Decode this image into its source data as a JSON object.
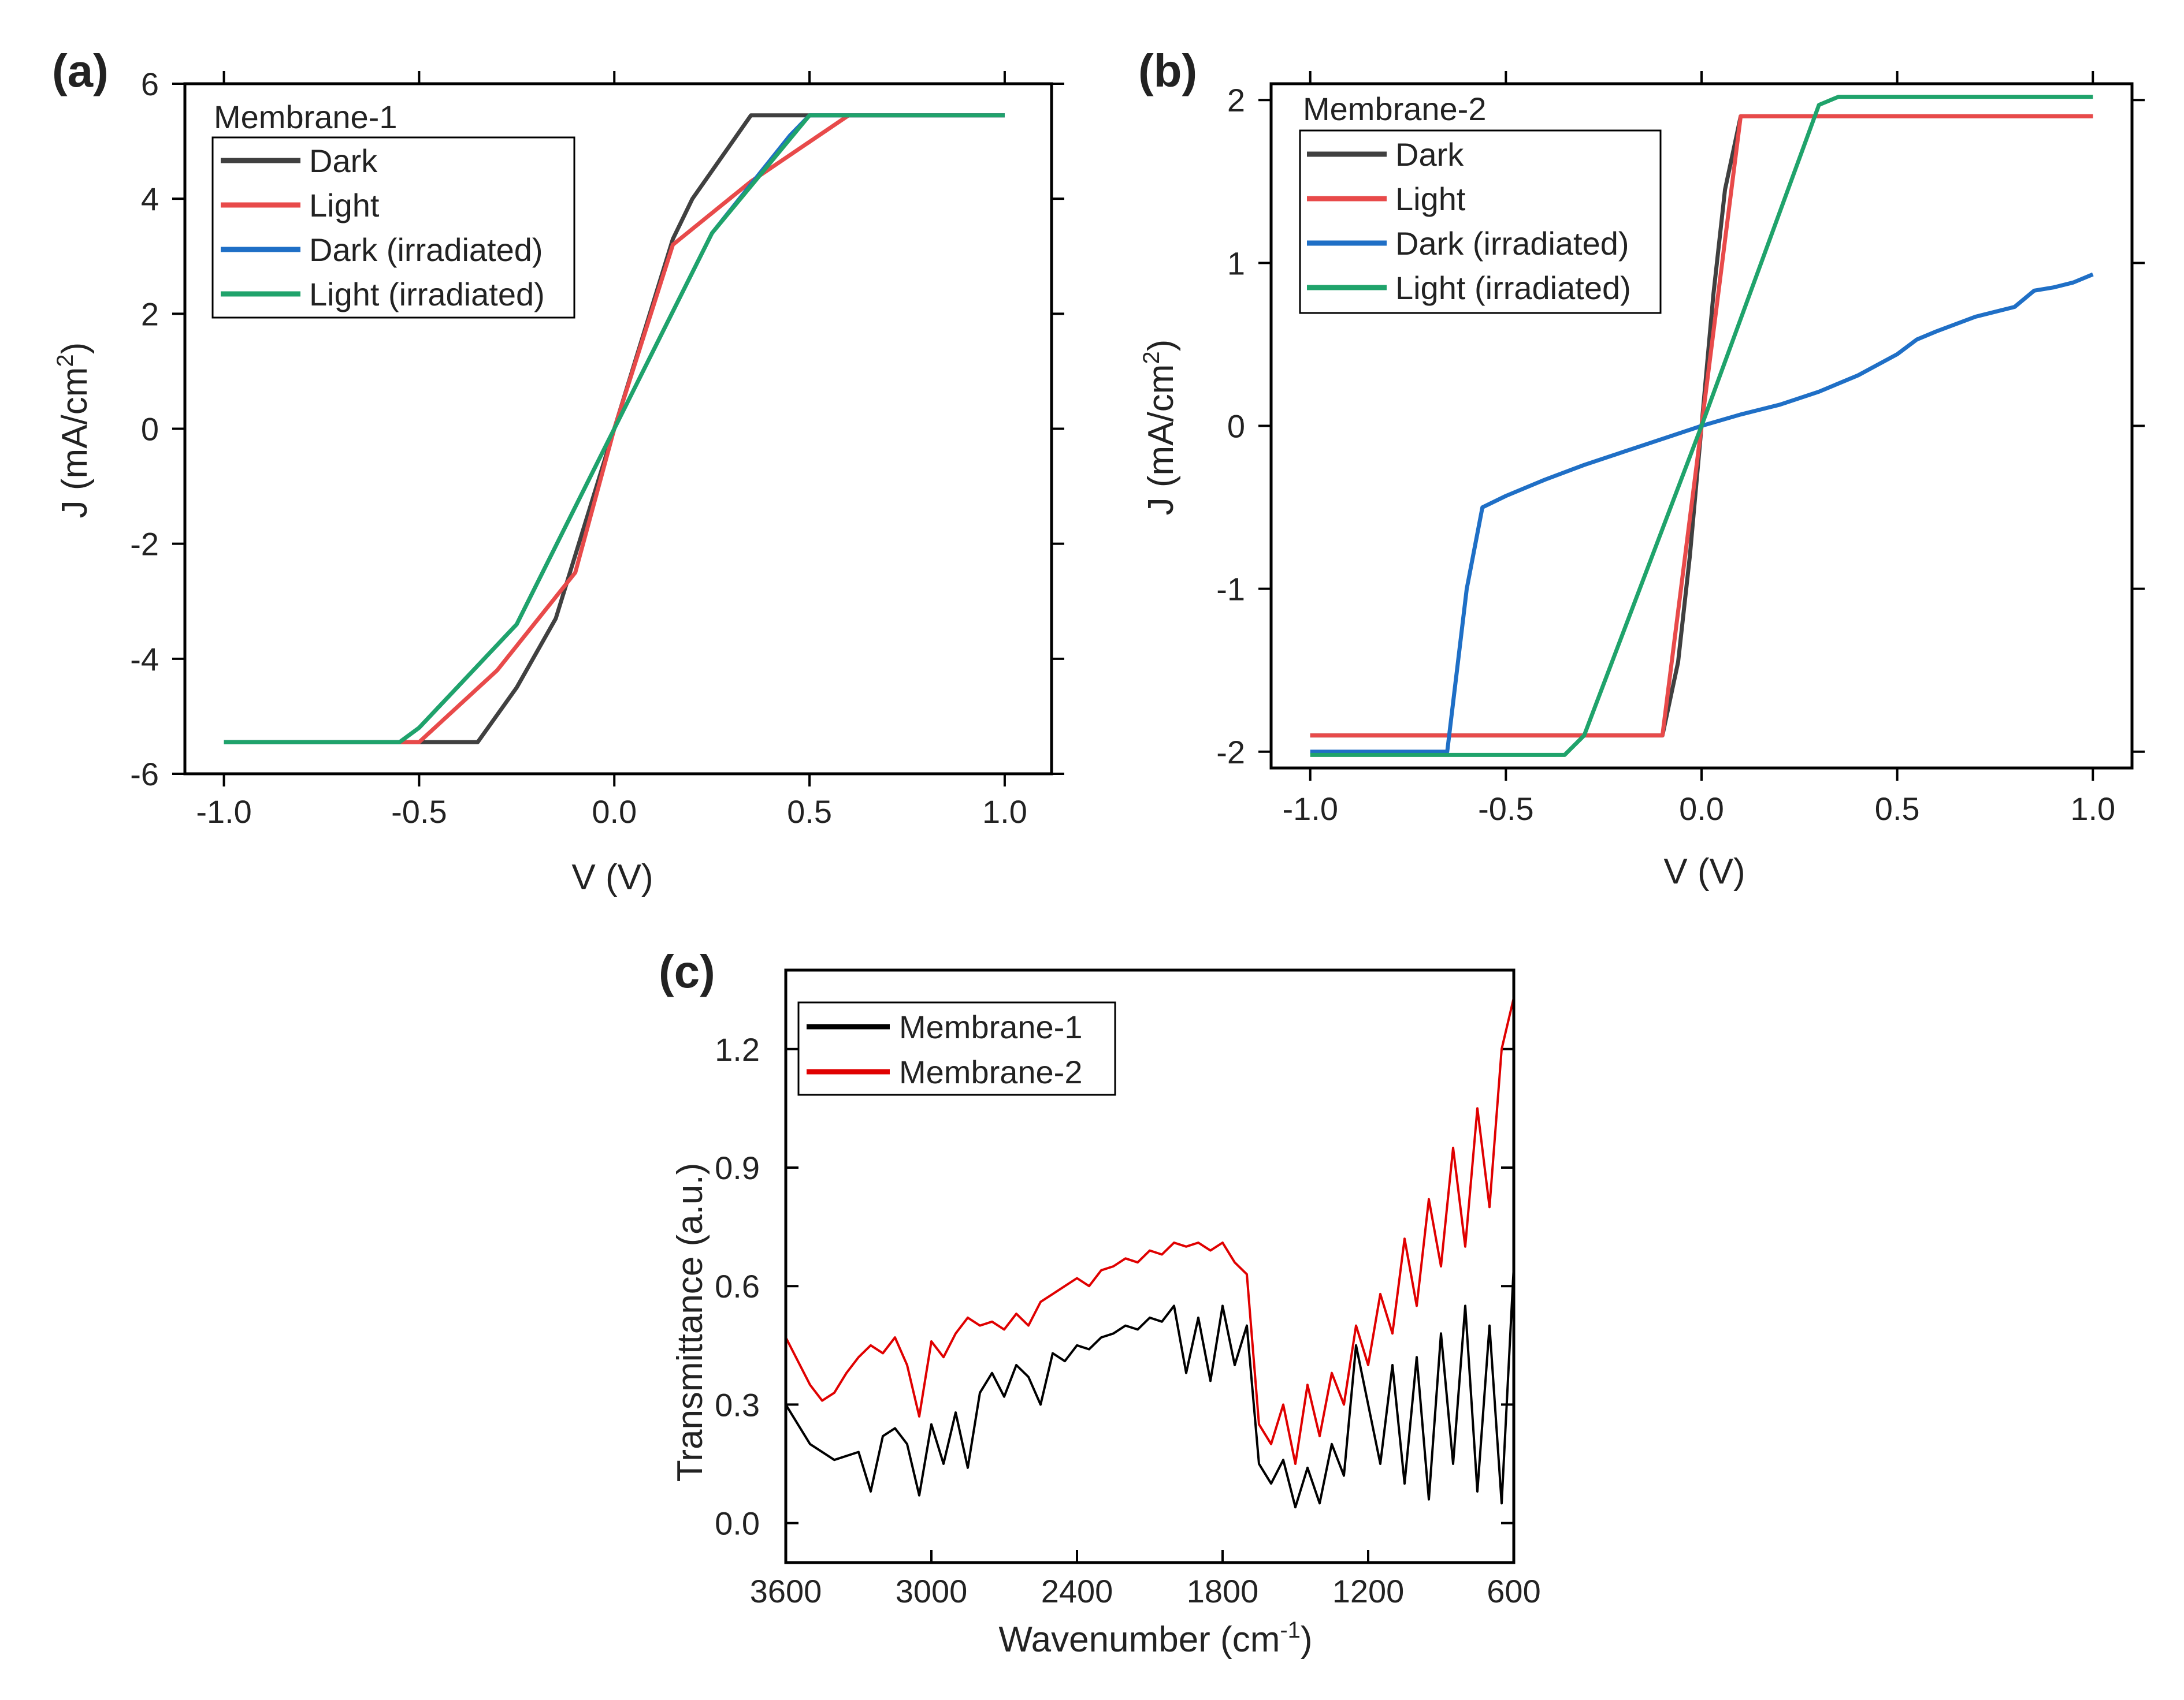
{
  "figure": {
    "panels": [
      "(a)",
      "(b)",
      "(c)"
    ]
  },
  "chart_data": [
    {
      "id": "a",
      "type": "line",
      "panel_label": "(a)",
      "legend_title": "Membrane-1",
      "xlabel": "V (V)",
      "ylabel": "J (mA/cm²)",
      "ylabel_main": "J (mA/cm",
      "ylabel_sup": "2",
      "ylabel_end": ")",
      "xlim": [
        -1.1,
        1.12
      ],
      "ylim": [
        -6,
        6
      ],
      "xticks": [
        -1.0,
        -0.5,
        0.0,
        0.5,
        1.0
      ],
      "xtick_labels": [
        "-1.0",
        "-0.5",
        "0.0",
        "0.5",
        "1.0"
      ],
      "yticks": [
        -6,
        -4,
        -2,
        0,
        2,
        4,
        6
      ],
      "ytick_labels": [
        "-6",
        "-4",
        "-2",
        "0",
        "2",
        "4",
        "6"
      ],
      "series": [
        {
          "name": "Dark",
          "color": "#404040",
          "x": [
            -1.0,
            -0.35,
            -0.25,
            -0.15,
            0.0,
            0.15,
            0.2,
            0.35,
            0.5,
            1.0
          ],
          "y": [
            -5.45,
            -5.45,
            -4.5,
            -3.3,
            0.0,
            3.3,
            4.0,
            5.45,
            5.45,
            5.45
          ]
        },
        {
          "name": "Light",
          "color": "#e84a4a",
          "x": [
            -1.0,
            -0.5,
            -0.3,
            -0.1,
            0.0,
            0.15,
            0.35,
            0.6,
            1.0
          ],
          "y": [
            -5.45,
            -5.45,
            -4.2,
            -2.5,
            0.0,
            3.2,
            4.3,
            5.45,
            5.45
          ]
        },
        {
          "name": "Dark (irradiated)",
          "color": "#1f6fc6",
          "x": [
            -1.0,
            -0.55,
            -0.5,
            -0.25,
            0.0,
            0.25,
            0.45,
            0.5,
            1.0
          ],
          "y": [
            -5.45,
            -5.45,
            -5.2,
            -3.4,
            0.0,
            3.4,
            5.1,
            5.45,
            5.45
          ]
        },
        {
          "name": "Light (irradiated)",
          "color": "#1fa36b",
          "x": [
            -1.0,
            -0.55,
            -0.5,
            -0.25,
            0.0,
            0.25,
            0.5,
            1.0
          ],
          "y": [
            -5.45,
            -5.45,
            -5.2,
            -3.4,
            0.0,
            3.4,
            5.45,
            5.45
          ]
        }
      ]
    },
    {
      "id": "b",
      "type": "line",
      "panel_label": "(b)",
      "legend_title": "Membrane-2",
      "xlabel": "V (V)",
      "ylabel": "J (mA/cm²)",
      "ylabel_main": "J (mA/cm",
      "ylabel_sup": "2",
      "ylabel_end": ")",
      "xlim": [
        -1.1,
        1.1
      ],
      "ylim": [
        -2.1,
        2.1
      ],
      "xticks": [
        -1.0,
        -0.5,
        0.0,
        0.5,
        1.0
      ],
      "xtick_labels": [
        "-1.0",
        "-0.5",
        "0.0",
        "0.5",
        "1.0"
      ],
      "yticks": [
        -2,
        -1,
        0,
        1,
        2
      ],
      "ytick_labels": [
        "-2",
        "-1",
        "0",
        "1",
        "2"
      ],
      "series": [
        {
          "name": "Dark",
          "color": "#404040",
          "x": [
            -1.0,
            -0.1,
            -0.06,
            -0.03,
            0.0,
            0.03,
            0.06,
            0.1,
            1.0
          ],
          "y": [
            -1.9,
            -1.9,
            -1.45,
            -0.8,
            0.0,
            0.8,
            1.45,
            1.9,
            1.9
          ]
        },
        {
          "name": "Light",
          "color": "#e84a4a",
          "x": [
            -1.0,
            -0.1,
            0.0,
            0.1,
            1.0
          ],
          "y": [
            -1.9,
            -1.9,
            0.0,
            1.9,
            1.9
          ]
        },
        {
          "name": "Dark (irradiated)",
          "color": "#1f6fc6",
          "x": [
            -1.0,
            -0.65,
            -0.6,
            -0.56,
            -0.5,
            -0.4,
            -0.3,
            -0.2,
            -0.1,
            0.0,
            0.1,
            0.2,
            0.3,
            0.4,
            0.5,
            0.55,
            0.6,
            0.7,
            0.8,
            0.85,
            0.9,
            0.95,
            1.0
          ],
          "y": [
            -2.0,
            -2.0,
            -1.0,
            -0.5,
            -0.43,
            -0.33,
            -0.24,
            -0.16,
            -0.08,
            0.0,
            0.07,
            0.13,
            0.21,
            0.31,
            0.44,
            0.53,
            0.58,
            0.67,
            0.73,
            0.83,
            0.85,
            0.88,
            0.93
          ]
        },
        {
          "name": "Light (irradiated)",
          "color": "#1fa36b",
          "x": [
            -1.0,
            -0.35,
            -0.3,
            0.0,
            0.3,
            0.35,
            1.0
          ],
          "y": [
            -2.02,
            -2.02,
            -1.9,
            0.0,
            1.97,
            2.02,
            2.02
          ]
        }
      ]
    },
    {
      "id": "c",
      "type": "line",
      "panel_label": "(c)",
      "legend_title": "",
      "xlabel": "Wavenumber (cm⁻¹)",
      "xlabel_main": "Wavenumber (cm",
      "xlabel_sup": "-1",
      "xlabel_end": ")",
      "ylabel": "Transmittance (a.u.)",
      "xlim": [
        3600,
        600
      ],
      "ylim": [
        -0.1,
        1.4
      ],
      "xticks": [
        3600,
        3000,
        2400,
        1800,
        1200,
        600
      ],
      "xtick_labels": [
        "3600",
        "3000",
        "2400",
        "1800",
        "1200",
        "600"
      ],
      "yticks": [
        0.0,
        0.3,
        0.6,
        0.9,
        1.2
      ],
      "ytick_labels": [
        "0.0",
        "0.3",
        "0.6",
        "0.9",
        "1.2"
      ],
      "series": [
        {
          "name": "Membrane-1",
          "color": "#000000",
          "x": [
            3600,
            3500,
            3400,
            3300,
            3250,
            3200,
            3150,
            3100,
            3050,
            3000,
            2950,
            2900,
            2850,
            2800,
            2750,
            2700,
            2650,
            2600,
            2550,
            2500,
            2450,
            2400,
            2350,
            2300,
            2250,
            2200,
            2150,
            2100,
            2050,
            2000,
            1950,
            1900,
            1850,
            1800,
            1750,
            1700,
            1650,
            1600,
            1550,
            1500,
            1450,
            1400,
            1350,
            1300,
            1250,
            1200,
            1150,
            1100,
            1050,
            1000,
            950,
            900,
            850,
            800,
            750,
            700,
            650,
            600
          ],
          "y": [
            0.3,
            0.2,
            0.16,
            0.18,
            0.08,
            0.22,
            0.24,
            0.2,
            0.07,
            0.25,
            0.15,
            0.28,
            0.14,
            0.33,
            0.38,
            0.32,
            0.4,
            0.37,
            0.3,
            0.43,
            0.41,
            0.45,
            0.44,
            0.47,
            0.48,
            0.5,
            0.49,
            0.52,
            0.51,
            0.55,
            0.38,
            0.52,
            0.36,
            0.55,
            0.4,
            0.5,
            0.15,
            0.1,
            0.16,
            0.04,
            0.14,
            0.05,
            0.2,
            0.12,
            0.45,
            0.3,
            0.15,
            0.4,
            0.1,
            0.42,
            0.06,
            0.48,
            0.15,
            0.55,
            0.08,
            0.5,
            0.05,
            0.65
          ]
        },
        {
          "name": "Membrane-2",
          "color": "#e00000",
          "x": [
            3600,
            3500,
            3450,
            3400,
            3350,
            3300,
            3250,
            3200,
            3150,
            3100,
            3050,
            3000,
            2950,
            2900,
            2850,
            2800,
            2750,
            2700,
            2650,
            2600,
            2550,
            2500,
            2450,
            2400,
            2350,
            2300,
            2250,
            2200,
            2150,
            2100,
            2050,
            2000,
            1950,
            1900,
            1850,
            1800,
            1750,
            1700,
            1650,
            1600,
            1550,
            1500,
            1450,
            1400,
            1350,
            1300,
            1250,
            1200,
            1150,
            1100,
            1050,
            1000,
            950,
            900,
            850,
            800,
            750,
            700,
            650,
            600
          ],
          "y": [
            0.47,
            0.35,
            0.31,
            0.33,
            0.38,
            0.42,
            0.45,
            0.43,
            0.47,
            0.4,
            0.27,
            0.46,
            0.42,
            0.48,
            0.52,
            0.5,
            0.51,
            0.49,
            0.53,
            0.5,
            0.56,
            0.58,
            0.6,
            0.62,
            0.6,
            0.64,
            0.65,
            0.67,
            0.66,
            0.69,
            0.68,
            0.71,
            0.7,
            0.71,
            0.69,
            0.71,
            0.66,
            0.63,
            0.25,
            0.2,
            0.3,
            0.15,
            0.35,
            0.22,
            0.38,
            0.3,
            0.5,
            0.4,
            0.58,
            0.48,
            0.72,
            0.55,
            0.82,
            0.65,
            0.95,
            0.7,
            1.05,
            0.8,
            1.2,
            1.33
          ]
        }
      ]
    }
  ]
}
